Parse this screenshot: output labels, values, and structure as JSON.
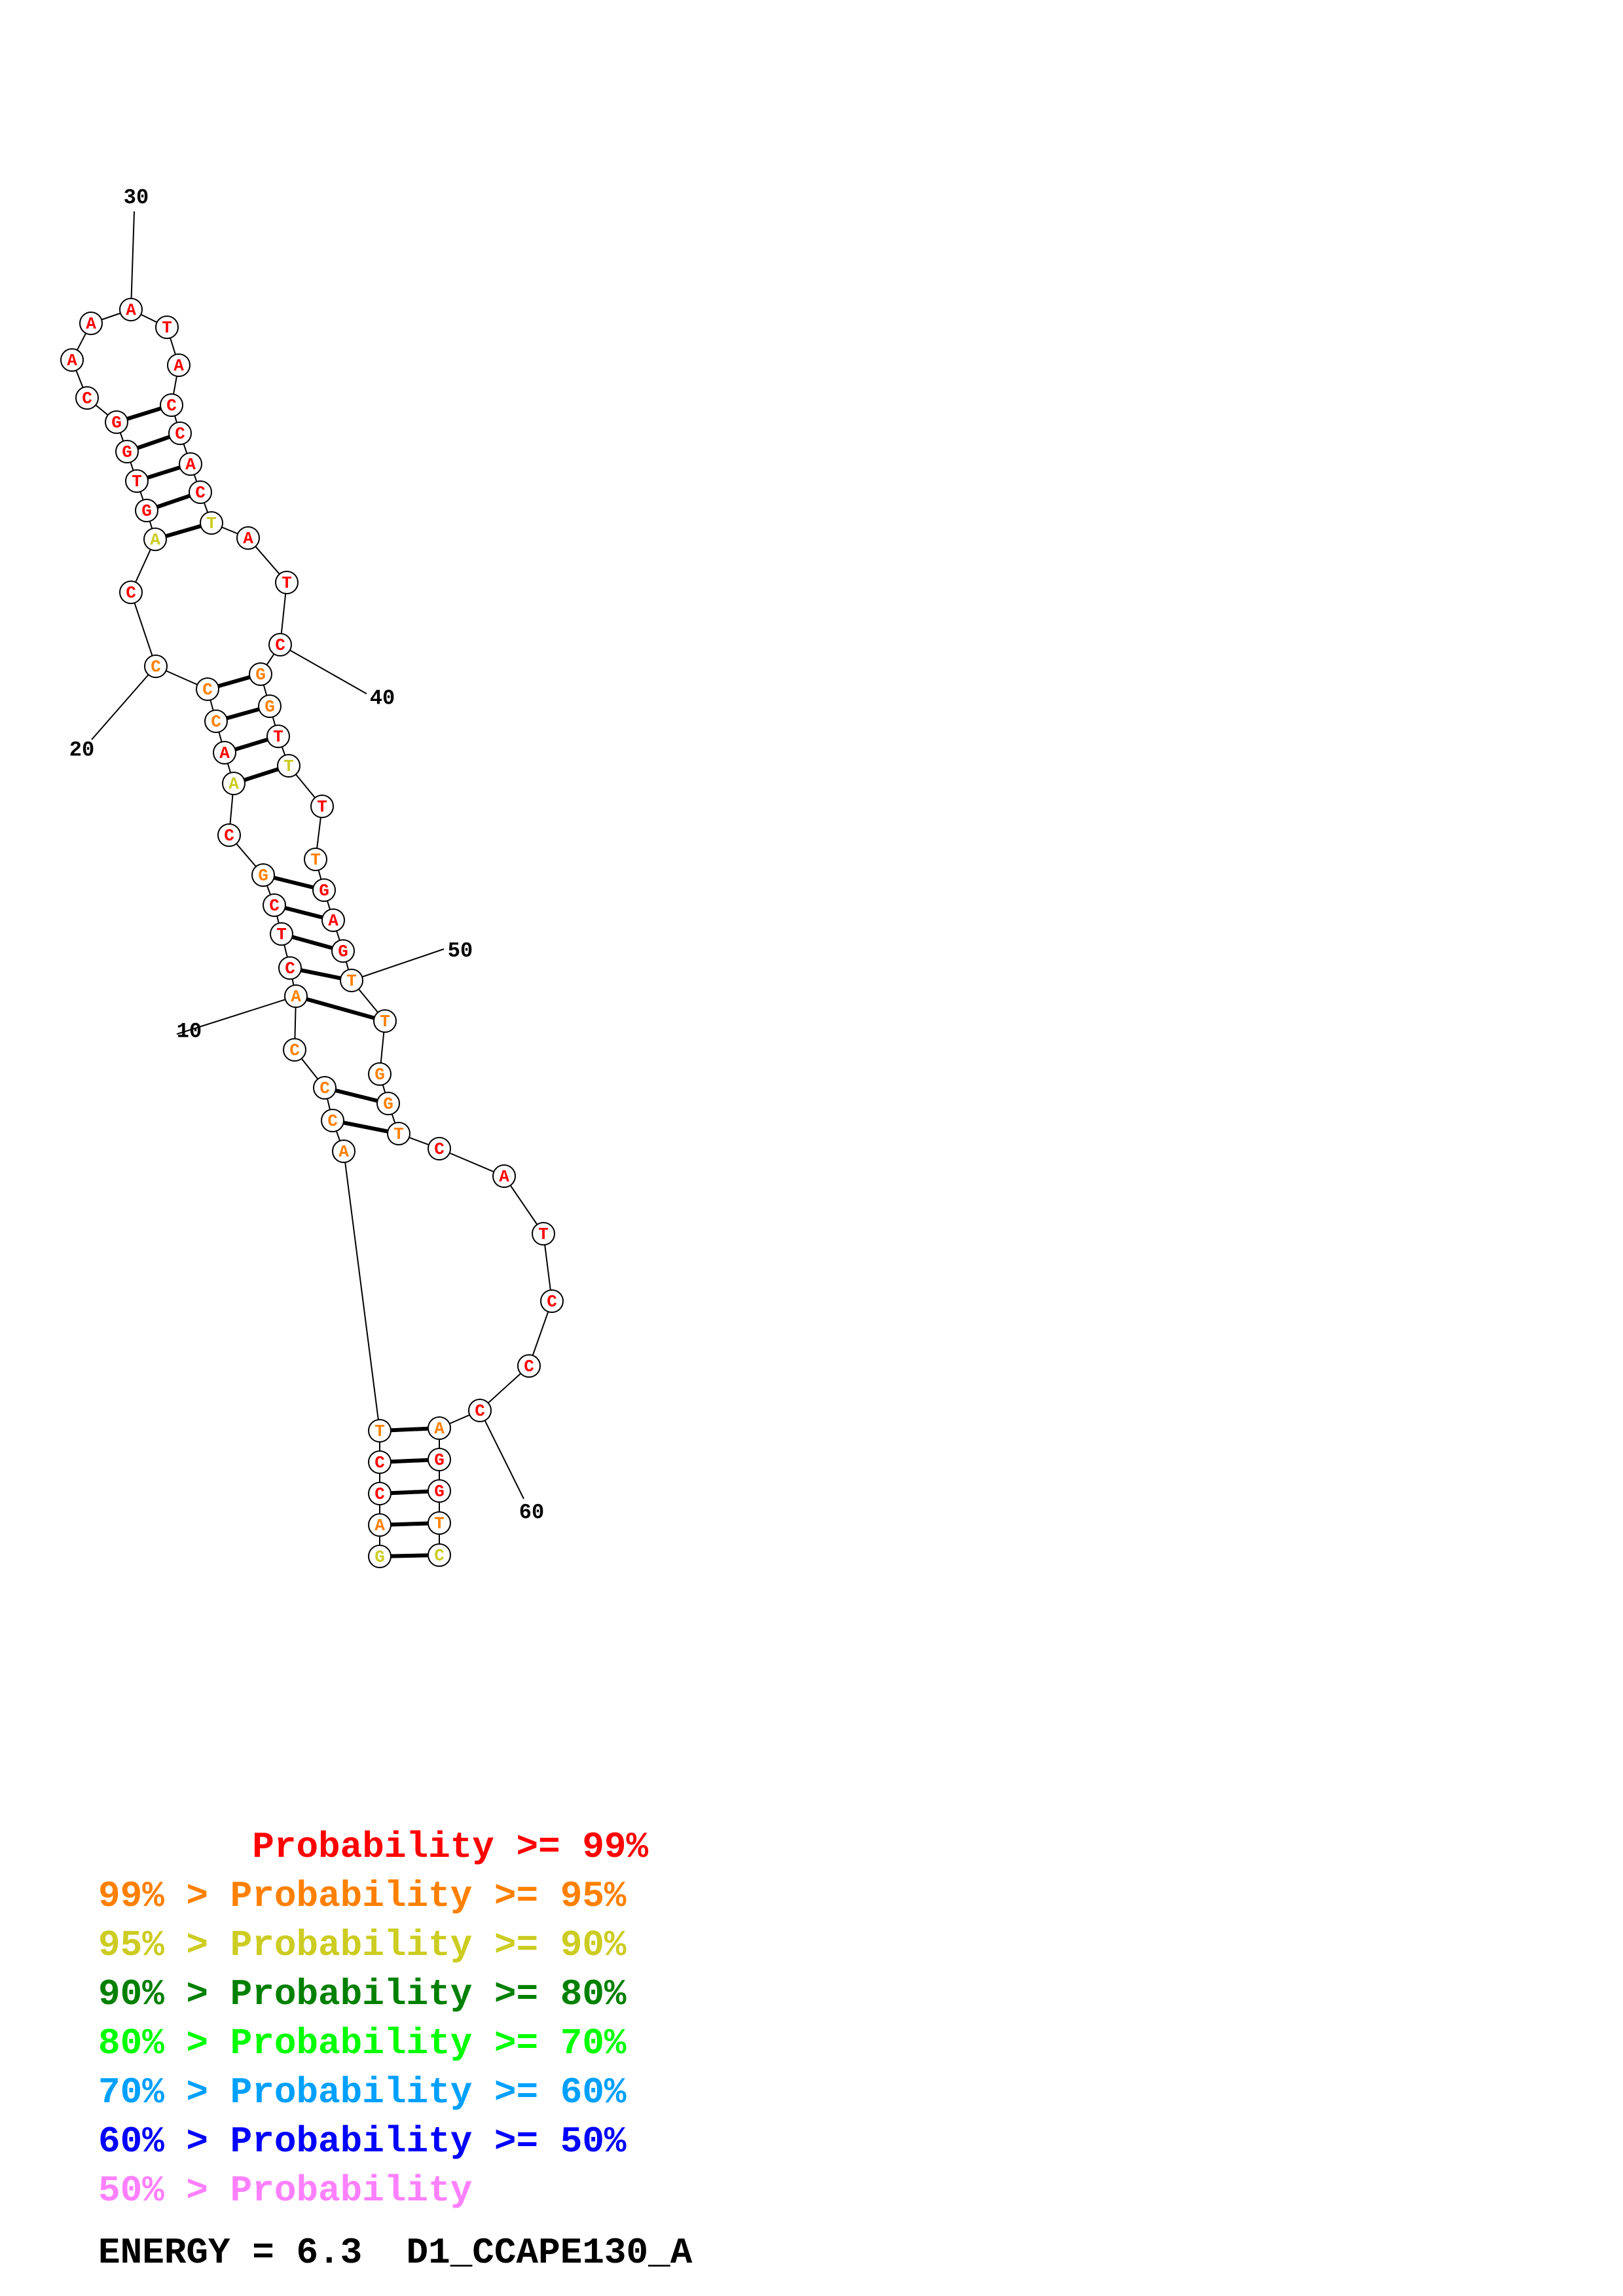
{
  "colors": {
    "red": "#ff0000",
    "orange": "#ff8000",
    "yellow": "#cccc22",
    "darkgreen": "#008000",
    "green": "#00ff00",
    "cyan": "#00a0ff",
    "blue": "#0000ff",
    "pink": "#ff80ff",
    "black": "#000000"
  },
  "position_labels": [
    "10",
    "20",
    "30",
    "40",
    "50",
    "60"
  ],
  "nucleotides": [
    {
      "n": "G",
      "c": "yellow"
    },
    {
      "n": "A",
      "c": "orange"
    },
    {
      "n": "C",
      "c": "red"
    },
    {
      "n": "C",
      "c": "red"
    },
    {
      "n": "T",
      "c": "orange"
    },
    {
      "n": "A",
      "c": "orange"
    },
    {
      "n": "C",
      "c": "orange"
    },
    {
      "n": "C",
      "c": "orange"
    },
    {
      "n": "C",
      "c": "orange"
    },
    {
      "n": "A",
      "c": "orange"
    },
    {
      "n": "C",
      "c": "red"
    },
    {
      "n": "T",
      "c": "red"
    },
    {
      "n": "C",
      "c": "red"
    },
    {
      "n": "G",
      "c": "orange"
    },
    {
      "n": "C",
      "c": "red"
    },
    {
      "n": "A",
      "c": "yellow"
    },
    {
      "n": "A",
      "c": "red"
    },
    {
      "n": "C",
      "c": "orange"
    },
    {
      "n": "C",
      "c": "orange"
    },
    {
      "n": "C",
      "c": "orange"
    },
    {
      "n": "C",
      "c": "red"
    },
    {
      "n": "A",
      "c": "yellow"
    },
    {
      "n": "G",
      "c": "red"
    },
    {
      "n": "T",
      "c": "red"
    },
    {
      "n": "G",
      "c": "red"
    },
    {
      "n": "G",
      "c": "red"
    },
    {
      "n": "C",
      "c": "red"
    },
    {
      "n": "A",
      "c": "red"
    },
    {
      "n": "A",
      "c": "red"
    },
    {
      "n": "A",
      "c": "red"
    },
    {
      "n": "T",
      "c": "red"
    },
    {
      "n": "A",
      "c": "red"
    },
    {
      "n": "C",
      "c": "red"
    },
    {
      "n": "C",
      "c": "red"
    },
    {
      "n": "A",
      "c": "red"
    },
    {
      "n": "C",
      "c": "red"
    },
    {
      "n": "T",
      "c": "yellow"
    },
    {
      "n": "A",
      "c": "red"
    },
    {
      "n": "T",
      "c": "red"
    },
    {
      "n": "C",
      "c": "red"
    },
    {
      "n": "G",
      "c": "orange"
    },
    {
      "n": "G",
      "c": "orange"
    },
    {
      "n": "T",
      "c": "red"
    },
    {
      "n": "T",
      "c": "yellow"
    },
    {
      "n": "T",
      "c": "red"
    },
    {
      "n": "T",
      "c": "orange"
    },
    {
      "n": "G",
      "c": "red"
    },
    {
      "n": "A",
      "c": "red"
    },
    {
      "n": "G",
      "c": "red"
    },
    {
      "n": "T",
      "c": "orange"
    },
    {
      "n": "T",
      "c": "orange"
    },
    {
      "n": "G",
      "c": "orange"
    },
    {
      "n": "G",
      "c": "orange"
    },
    {
      "n": "T",
      "c": "orange"
    },
    {
      "n": "C",
      "c": "red"
    },
    {
      "n": "A",
      "c": "red"
    },
    {
      "n": "T",
      "c": "red"
    },
    {
      "n": "C",
      "c": "red"
    },
    {
      "n": "C",
      "c": "red"
    },
    {
      "n": "C",
      "c": "red"
    },
    {
      "n": "A",
      "c": "orange"
    },
    {
      "n": "G",
      "c": "red"
    },
    {
      "n": "G",
      "c": "red"
    },
    {
      "n": "T",
      "c": "orange"
    },
    {
      "n": "C",
      "c": "yellow"
    }
  ],
  "base_pairs": [
    [
      1,
      65
    ],
    [
      2,
      64
    ],
    [
      3,
      63
    ],
    [
      4,
      62
    ],
    [
      5,
      61
    ],
    [
      7,
      54
    ],
    [
      8,
      53
    ],
    [
      10,
      51
    ],
    [
      11,
      50
    ],
    [
      12,
      49
    ],
    [
      13,
      48
    ],
    [
      14,
      47
    ],
    [
      16,
      44
    ],
    [
      17,
      43
    ],
    [
      18,
      42
    ],
    [
      19,
      41
    ],
    [
      22,
      37
    ],
    [
      23,
      36
    ],
    [
      24,
      35
    ],
    [
      25,
      34
    ],
    [
      26,
      33
    ]
  ],
  "legend": [
    {
      "text": "       Probability >= 99%",
      "color": "red"
    },
    {
      "text": "99% > Probability >= 95%",
      "color": "orange"
    },
    {
      "text": "95% > Probability >= 90%",
      "color": "yellow"
    },
    {
      "text": "90% > Probability >= 80%",
      "color": "darkgreen"
    },
    {
      "text": "80% > Probability >= 70%",
      "color": "green"
    },
    {
      "text": "70% > Probability >= 60%",
      "color": "cyan"
    },
    {
      "text": "60% > Probability >= 50%",
      "color": "blue"
    },
    {
      "text": "50% > Probability",
      "color": "pink"
    }
  ],
  "footer": {
    "energy_label": "ENERGY = 6.3  D1_CCAPE130_A"
  }
}
